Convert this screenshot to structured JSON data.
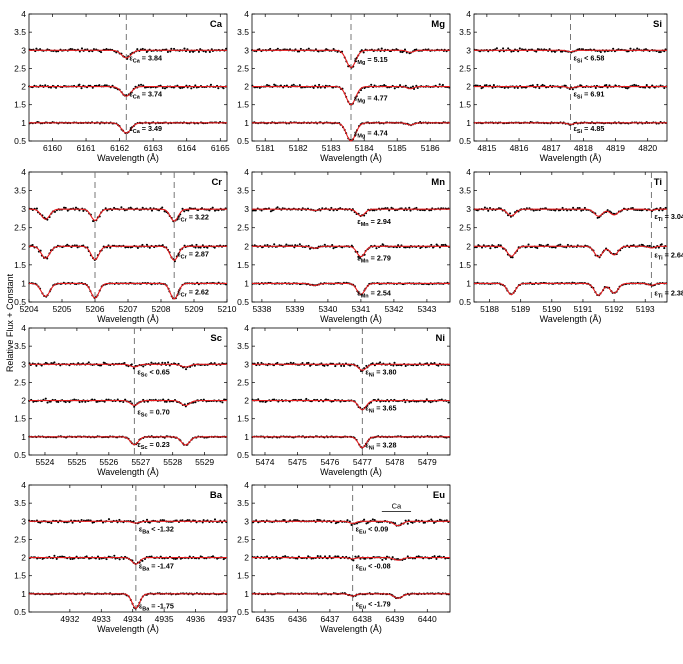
{
  "figure": {
    "ylabel": "Relative Flux + Constant"
  },
  "chart_data": [
    {
      "type": "line",
      "element": "Ca",
      "xlabel": "Wavelength (Å)",
      "xlim": [
        6159.3,
        6165.2
      ],
      "ylim": [
        0.5,
        4
      ],
      "xticks": [
        6160,
        6161,
        6162,
        6163,
        6164,
        6165
      ],
      "yticks": [
        "0.5",
        "1",
        "1.5",
        "2",
        "2.5",
        "3",
        "3.5",
        "4"
      ],
      "lines": [
        6162.2
      ],
      "features": [
        {
          "c": 6162.2,
          "d": 0.28,
          "w": 0.14
        }
      ],
      "spectra": [
        {
          "offset": 3,
          "scale": 0.75,
          "label_sym": "Ca",
          "label_val": "3.84",
          "label_rel": "=",
          "label_y": 2.72
        },
        {
          "offset": 2,
          "scale": 0.95,
          "label_sym": "Ca",
          "label_val": "3.74",
          "label_rel": "=",
          "label_y": 1.72
        },
        {
          "offset": 1,
          "scale": 1.0,
          "label_sym": "Ca",
          "label_val": "3.49",
          "label_rel": "=",
          "label_y": 0.78
        }
      ]
    },
    {
      "type": "line",
      "element": "Mg",
      "xlabel": "Wavelength (Å)",
      "xlim": [
        5180.6,
        5186.6
      ],
      "ylim": [
        0.5,
        4
      ],
      "xticks": [
        5181,
        5182,
        5183,
        5184,
        5185,
        5186
      ],
      "yticks": [
        "0.5",
        "1",
        "1.5",
        "2",
        "2.5",
        "3",
        "3.5",
        "4"
      ],
      "lines": [
        5183.6
      ],
      "features": [
        {
          "c": 5183.6,
          "d": 0.5,
          "w": 0.14
        },
        {
          "c": 5185.4,
          "d": 0.06,
          "w": 0.1
        }
      ],
      "spectra": [
        {
          "offset": 3,
          "scale": 0.95,
          "label_sym": "Mg",
          "label_val": "5.15",
          "label_rel": "=",
          "label_y": 2.68
        },
        {
          "offset": 2,
          "scale": 1.0,
          "label_sym": "Mg",
          "label_val": "4.77",
          "label_rel": "=",
          "label_y": 1.62
        },
        {
          "offset": 1,
          "scale": 1.0,
          "label_sym": "Mg",
          "label_val": "4.74",
          "label_rel": "=",
          "label_y": 0.65
        }
      ]
    },
    {
      "type": "line",
      "element": "Si",
      "xlabel": "Wavelength (Å)",
      "xlim": [
        4814.6,
        4820.6
      ],
      "ylim": [
        0.5,
        4
      ],
      "xticks": [
        4815,
        4816,
        4817,
        4818,
        4819,
        4820
      ],
      "yticks": [
        "0.5",
        "1",
        "1.5",
        "2",
        "2.5",
        "3",
        "3.5",
        "4"
      ],
      "lines": [
        4817.6
      ],
      "features": [
        {
          "c": 4817.6,
          "d": 0.04,
          "w": 0.1
        }
      ],
      "spectra": [
        {
          "offset": 3,
          "scale": 1.0,
          "label_sym": "Si",
          "label_val": "6.58",
          "label_rel": "<",
          "label_y": 2.72
        },
        {
          "offset": 2,
          "scale": 1.0,
          "label_sym": "Si",
          "label_val": "6.91",
          "label_rel": "=",
          "label_y": 1.72
        },
        {
          "offset": 1,
          "scale": 1.0,
          "label_sym": "Si",
          "label_val": "4.85",
          "label_rel": "=",
          "label_y": 0.78
        }
      ]
    },
    {
      "type": "line",
      "element": "Cr",
      "xlabel": "Wavelength (Å)",
      "xlim": [
        5204,
        5210
      ],
      "ylim": [
        0.5,
        4
      ],
      "xticks": [
        5204,
        5205,
        5206,
        5207,
        5208,
        5209,
        5210
      ],
      "yticks": [
        "0.5",
        "1",
        "1.5",
        "2",
        "2.5",
        "3",
        "3.5",
        "4"
      ],
      "lines": [
        5206.0,
        5208.4
      ],
      "features": [
        {
          "c": 5204.5,
          "d": 0.32,
          "w": 0.13
        },
        {
          "c": 5206.0,
          "d": 0.36,
          "w": 0.12
        },
        {
          "c": 5208.4,
          "d": 0.38,
          "w": 0.12
        }
      ],
      "spectra": [
        {
          "offset": 3,
          "scale": 0.85,
          "label_sym": "Cr",
          "label_val": "3.22",
          "label_rel": "=",
          "label_y": 2.72
        },
        {
          "offset": 2,
          "scale": 1.0,
          "label_sym": "Cr",
          "label_val": "2.87",
          "label_rel": "=",
          "label_y": 1.72
        },
        {
          "offset": 1,
          "scale": 1.1,
          "label_sym": "Cr",
          "label_val": "2.62",
          "label_rel": "=",
          "label_y": 0.7
        }
      ]
    },
    {
      "type": "line",
      "element": "Mn",
      "xlabel": "Wavelength (Å)",
      "xlim": [
        5337.7,
        5343.7
      ],
      "ylim": [
        0.5,
        4
      ],
      "xticks": [
        5338,
        5339,
        5340,
        5341,
        5342,
        5343
      ],
      "yticks": [
        "0.5",
        "1",
        "1.5",
        "2",
        "2.5",
        "3",
        "3.5",
        "4"
      ],
      "lines": [],
      "features": [
        {
          "c": 5341.0,
          "d": 0.33,
          "w": 0.12
        },
        {
          "c": 5339.6,
          "d": 0.06,
          "w": 0.12
        }
      ],
      "spectra": [
        {
          "offset": 3,
          "scale": 0.55,
          "label_sym": "Mn",
          "label_val": "2.94",
          "label_rel": "=",
          "label_y": 2.6
        },
        {
          "offset": 2,
          "scale": 0.85,
          "label_sym": "Mn",
          "label_val": "2.79",
          "label_rel": "=",
          "label_y": 1.62
        },
        {
          "offset": 1,
          "scale": 0.9,
          "label_sym": "Mn",
          "label_val": "2.54",
          "label_rel": "=",
          "label_y": 0.68
        }
      ]
    },
    {
      "type": "line",
      "element": "Ti",
      "xlabel": "Wavelength (Å)",
      "xlim": [
        5187.5,
        5193.7
      ],
      "ylim": [
        0.5,
        4
      ],
      "xticks": [
        5188,
        5189,
        5190,
        5191,
        5192,
        5193
      ],
      "yticks": [
        "0.5",
        "1",
        "1.5",
        "2",
        "2.5",
        "3",
        "3.5",
        "4"
      ],
      "lines": [
        5193.2
      ],
      "features": [
        {
          "c": 5188.7,
          "d": 0.3,
          "w": 0.13
        },
        {
          "c": 5191.5,
          "d": 0.32,
          "w": 0.13
        },
        {
          "c": 5192.0,
          "d": 0.26,
          "w": 0.13
        },
        {
          "c": 5193.2,
          "d": 0.05,
          "w": 0.1
        }
      ],
      "spectra": [
        {
          "offset": 3,
          "scale": 0.6,
          "label_sym": "Ti",
          "label_val": "3.04",
          "label_rel": "=",
          "label_y": 2.74
        },
        {
          "offset": 2,
          "scale": 0.9,
          "label_sym": "Ti",
          "label_val": "2.64",
          "label_rel": "=",
          "label_y": 1.7
        },
        {
          "offset": 1,
          "scale": 1.0,
          "label_sym": "Ti",
          "label_val": "2.38",
          "label_rel": "=",
          "label_y": 0.68
        }
      ]
    },
    {
      "type": "line",
      "element": "Sc",
      "xlabel": "Wavelength (Å)",
      "xlim": [
        5523.5,
        5529.7
      ],
      "ylim": [
        0.5,
        4
      ],
      "xticks": [
        5524,
        5525,
        5526,
        5527,
        5528,
        5529
      ],
      "yticks": [
        "0.5",
        "1",
        "1.5",
        "2",
        "2.5",
        "3",
        "3.5",
        "4"
      ],
      "lines": [
        5526.8
      ],
      "features": [
        {
          "c": 5526.8,
          "d": 0.24,
          "w": 0.12
        },
        {
          "c": 5528.4,
          "d": 0.25,
          "w": 0.13
        }
      ],
      "spectra": [
        {
          "offset": 3,
          "scale": 0.3,
          "label_sym": "Sc",
          "label_val": "0.65",
          "label_rel": "<",
          "label_y": 2.72
        },
        {
          "offset": 2,
          "scale": 0.55,
          "label_sym": "Sc",
          "label_val": "0.70",
          "label_rel": "=",
          "label_y": 1.62
        },
        {
          "offset": 1,
          "scale": 0.9,
          "label_sym": "Sc",
          "label_val": "0.23",
          "label_rel": "=",
          "label_y": 0.72
        }
      ]
    },
    {
      "type": "line",
      "element": "Ni",
      "xlabel": "Wavelength (Å)",
      "xlim": [
        5473.6,
        5479.7
      ],
      "ylim": [
        0.5,
        4
      ],
      "xticks": [
        5474,
        5475,
        5476,
        5477,
        5478,
        5479
      ],
      "yticks": [
        "0.5",
        "1",
        "1.5",
        "2",
        "2.5",
        "3",
        "3.5",
        "4"
      ],
      "lines": [
        5477.0
      ],
      "features": [
        {
          "c": 5477.0,
          "d": 0.3,
          "w": 0.12
        }
      ],
      "spectra": [
        {
          "offset": 3,
          "scale": 0.55,
          "label_sym": "Ni",
          "label_val": "3.80",
          "label_rel": "=",
          "label_y": 2.72
        },
        {
          "offset": 2,
          "scale": 0.85,
          "label_sym": "Ni",
          "label_val": "3.65",
          "label_rel": "=",
          "label_y": 1.72
        },
        {
          "offset": 1,
          "scale": 1.0,
          "label_sym": "Ni",
          "label_val": "3.28",
          "label_rel": "=",
          "label_y": 0.7
        }
      ]
    },
    {
      "type": "line",
      "element": "Ba",
      "xlabel": "Wavelength (Å)",
      "xlim": [
        4930.7,
        4937
      ],
      "ylim": [
        0.5,
        4
      ],
      "xticks": [
        4932,
        4933,
        4934,
        4935,
        4936,
        4937
      ],
      "yticks": [
        "0.5",
        "1",
        "1.5",
        "2",
        "2.5",
        "3",
        "3.5",
        "4"
      ],
      "lines": [
        4934.1
      ],
      "features": [
        {
          "c": 4934.1,
          "d": 0.4,
          "w": 0.12
        }
      ],
      "spectra": [
        {
          "offset": 3,
          "scale": 0.12,
          "label_sym": "Ba",
          "label_val": "-1.32",
          "label_rel": "<",
          "label_y": 2.72
        },
        {
          "offset": 2,
          "scale": 0.45,
          "label_sym": "Ba",
          "label_val": "-1.47",
          "label_rel": "=",
          "label_y": 1.7
        },
        {
          "offset": 1,
          "scale": 1.0,
          "label_sym": "Ba",
          "label_val": "-1.75",
          "label_rel": "=",
          "label_y": 0.6
        }
      ]
    },
    {
      "type": "line",
      "element": "Eu",
      "xlabel": "Wavelength (Å)",
      "xlim": [
        6434.6,
        6440.7
      ],
      "ylim": [
        0.5,
        4
      ],
      "xticks": [
        6435,
        6436,
        6437,
        6438,
        6439,
        6440
      ],
      "yticks": [
        "0.5",
        "1",
        "1.5",
        "2",
        "2.5",
        "3",
        "3.5",
        "4"
      ],
      "lines": [
        6437.7
      ],
      "features": [
        {
          "c": 6437.7,
          "d": 0.06,
          "w": 0.1
        },
        {
          "c": 6439.1,
          "d": 0.12,
          "w": 0.13
        }
      ],
      "annotation": {
        "text": "Ca",
        "x_from": 6438.6,
        "x_to": 6439.5,
        "y": 3.27
      },
      "spectra": [
        {
          "offset": 3,
          "scale": 1.0,
          "label_sym": "Eu",
          "label_val": "0.09",
          "label_rel": "<",
          "label_y": 2.72
        },
        {
          "offset": 2,
          "scale": 0.6,
          "label_sym": "Eu",
          "label_val": "-0.08",
          "label_rel": "<",
          "label_y": 1.7
        },
        {
          "offset": 1,
          "scale": 1.0,
          "label_sym": "Eu",
          "label_val": "-1.79",
          "label_rel": "<",
          "label_y": 0.65
        }
      ]
    }
  ]
}
